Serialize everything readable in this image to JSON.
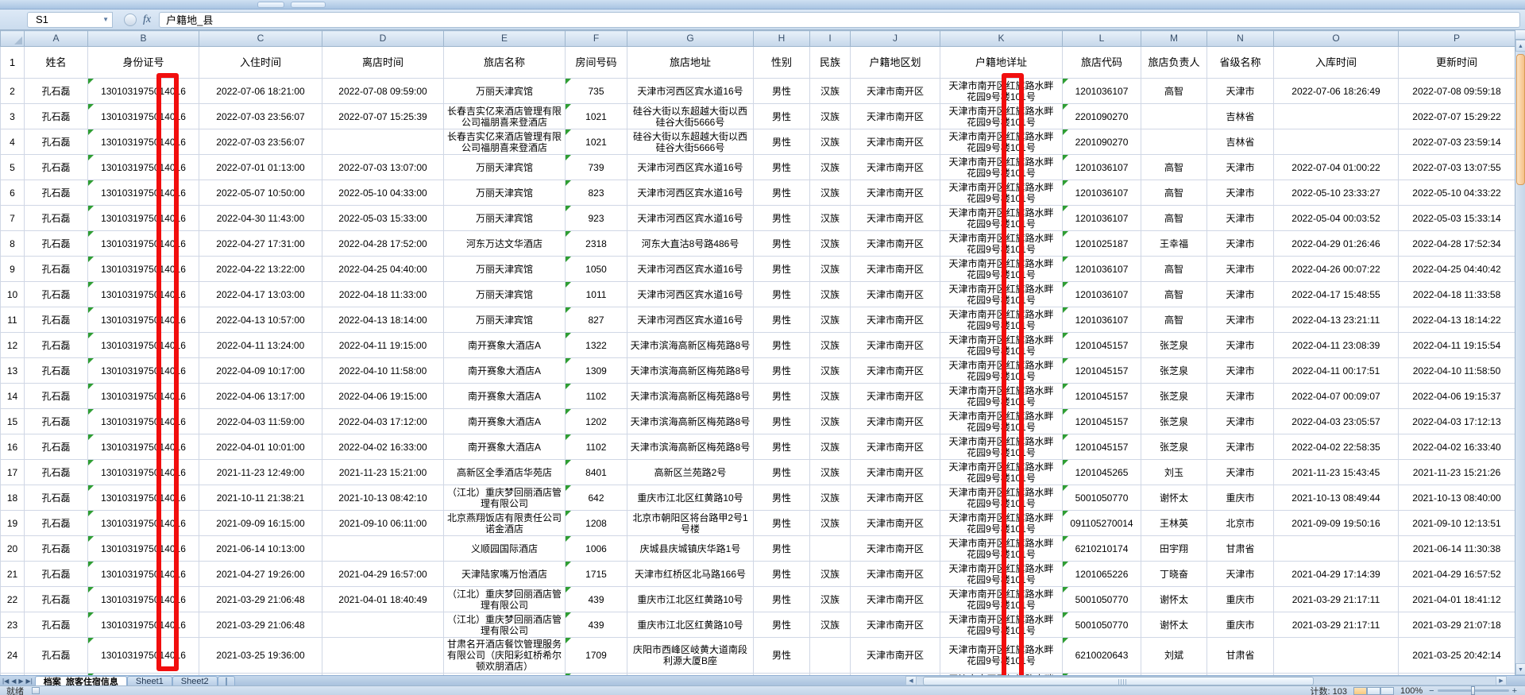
{
  "formula_bar": {
    "name_box": "S1",
    "fx_label": "fx",
    "formula_value": "户籍地_县"
  },
  "columns": {
    "letters": [
      "A",
      "B",
      "C",
      "D",
      "E",
      "F",
      "G",
      "H",
      "I",
      "J",
      "K",
      "L",
      "M",
      "N",
      "O",
      "P"
    ],
    "labels": [
      "姓名",
      "身份证号",
      "入住时间",
      "离店时间",
      "旅店名称",
      "房间号码",
      "旅店地址",
      "性别",
      "民族",
      "户籍地区划",
      "户籍地详址",
      "旅店代码",
      "旅店负责人",
      "省级名称",
      "入库时间",
      "更新时间"
    ]
  },
  "colors": {
    "highlight_box": "#f10e0e",
    "error_triangle": "#2f9e33",
    "row_gutter_bg": "#f8c895",
    "header_bg": "#d3e1f0"
  },
  "table": {
    "common": {
      "name": "孔石磊",
      "id": {
        "prefix": "13010319750",
        "boxed": "14",
        "suffix": "016"
      },
      "gender": "男性",
      "region": "天津市南开区",
      "reg_addr_line1": "天津市南开区红旗路水畔",
      "reg_addr_line2": "花园9号楼101号"
    },
    "rows": [
      {
        "ci": "2022-07-06 18:21:00",
        "co": "2022-07-08 09:59:00",
        "ho": "万丽天津宾馆",
        "rm": "735",
        "ad": "天津市河西区宾水道16号",
        "et": "汉族",
        "cd": "1201036107",
        "mg": "高智",
        "pv": "天津市",
        "en": "2022-07-06 18:26:49",
        "up": "2022-07-08 09:59:18"
      },
      {
        "ci": "2022-07-03 23:56:07",
        "co": "2022-07-07 15:25:39",
        "ho": "长春吉实亿来酒店管理有限公司福朋喜来登酒店",
        "rm": "1021",
        "ad": "硅谷大街以东超越大街以西硅谷大街5666号",
        "et": "汉族",
        "cd": "2201090270",
        "mg": "",
        "pv": "吉林省",
        "en": "",
        "up": "2022-07-07 15:29:22"
      },
      {
        "ci": "2022-07-03 23:56:07",
        "co": "",
        "ho": "长春吉实亿来酒店管理有限公司福朋喜来登酒店",
        "rm": "1021",
        "ad": "硅谷大街以东超越大街以西硅谷大街5666号",
        "et": "汉族",
        "cd": "2201090270",
        "mg": "",
        "pv": "吉林省",
        "en": "",
        "up": "2022-07-03 23:59:14"
      },
      {
        "ci": "2022-07-01 01:13:00",
        "co": "2022-07-03 13:07:00",
        "ho": "万丽天津宾馆",
        "rm": "739",
        "ad": "天津市河西区宾水道16号",
        "et": "汉族",
        "cd": "1201036107",
        "mg": "高智",
        "pv": "天津市",
        "en": "2022-07-04 01:00:22",
        "up": "2022-07-03 13:07:55"
      },
      {
        "ci": "2022-05-07 10:50:00",
        "co": "2022-05-10 04:33:00",
        "ho": "万丽天津宾馆",
        "rm": "823",
        "ad": "天津市河西区宾水道16号",
        "et": "汉族",
        "cd": "1201036107",
        "mg": "高智",
        "pv": "天津市",
        "en": "2022-05-10 23:33:27",
        "up": "2022-05-10 04:33:22"
      },
      {
        "ci": "2022-04-30 11:43:00",
        "co": "2022-05-03 15:33:00",
        "ho": "万丽天津宾馆",
        "rm": "923",
        "ad": "天津市河西区宾水道16号",
        "et": "汉族",
        "cd": "1201036107",
        "mg": "高智",
        "pv": "天津市",
        "en": "2022-05-04 00:03:52",
        "up": "2022-05-03 15:33:14"
      },
      {
        "ci": "2022-04-27 17:31:00",
        "co": "2022-04-28 17:52:00",
        "ho": "河东万达文华酒店",
        "rm": "2318",
        "ad": "河东大直沽8号路486号",
        "et": "汉族",
        "cd": "1201025187",
        "mg": "王幸福",
        "pv": "天津市",
        "en": "2022-04-29 01:26:46",
        "up": "2022-04-28 17:52:34"
      },
      {
        "ci": "2022-04-22 13:22:00",
        "co": "2022-04-25 04:40:00",
        "ho": "万丽天津宾馆",
        "rm": "1050",
        "ad": "天津市河西区宾水道16号",
        "et": "汉族",
        "cd": "1201036107",
        "mg": "高智",
        "pv": "天津市",
        "en": "2022-04-26 00:07:22",
        "up": "2022-04-25 04:40:42"
      },
      {
        "ci": "2022-04-17 13:03:00",
        "co": "2022-04-18 11:33:00",
        "ho": "万丽天津宾馆",
        "rm": "1011",
        "ad": "天津市河西区宾水道16号",
        "et": "汉族",
        "cd": "1201036107",
        "mg": "高智",
        "pv": "天津市",
        "en": "2022-04-17 15:48:55",
        "up": "2022-04-18 11:33:58"
      },
      {
        "ci": "2022-04-13 10:57:00",
        "co": "2022-04-13 18:14:00",
        "ho": "万丽天津宾馆",
        "rm": "827",
        "ad": "天津市河西区宾水道16号",
        "et": "汉族",
        "cd": "1201036107",
        "mg": "高智",
        "pv": "天津市",
        "en": "2022-04-13 23:21:11",
        "up": "2022-04-13 18:14:22"
      },
      {
        "ci": "2022-04-11 13:24:00",
        "co": "2022-04-11 19:15:00",
        "ho": "南开赛象大酒店A",
        "rm": "1322",
        "ad": "天津市滨海高新区梅苑路8号",
        "et": "汉族",
        "cd": "1201045157",
        "mg": "张芝泉",
        "pv": "天津市",
        "en": "2022-04-11 23:08:39",
        "up": "2022-04-11 19:15:54"
      },
      {
        "ci": "2022-04-09 10:17:00",
        "co": "2022-04-10 11:58:00",
        "ho": "南开赛象大酒店A",
        "rm": "1309",
        "ad": "天津市滨海高新区梅苑路8号",
        "et": "汉族",
        "cd": "1201045157",
        "mg": "张芝泉",
        "pv": "天津市",
        "en": "2022-04-11 00:17:51",
        "up": "2022-04-10 11:58:50"
      },
      {
        "ci": "2022-04-06 13:17:00",
        "co": "2022-04-06 19:15:00",
        "ho": "南开赛象大酒店A",
        "rm": "1102",
        "ad": "天津市滨海高新区梅苑路8号",
        "et": "汉族",
        "cd": "1201045157",
        "mg": "张芝泉",
        "pv": "天津市",
        "en": "2022-04-07 00:09:07",
        "up": "2022-04-06 19:15:37"
      },
      {
        "ci": "2022-04-03 11:59:00",
        "co": "2022-04-03 17:12:00",
        "ho": "南开赛象大酒店A",
        "rm": "1202",
        "ad": "天津市滨海高新区梅苑路8号",
        "et": "汉族",
        "cd": "1201045157",
        "mg": "张芝泉",
        "pv": "天津市",
        "en": "2022-04-03 23:05:57",
        "up": "2022-04-03 17:12:13"
      },
      {
        "ci": "2022-04-01 10:01:00",
        "co": "2022-04-02 16:33:00",
        "ho": "南开赛象大酒店A",
        "rm": "1102",
        "ad": "天津市滨海高新区梅苑路8号",
        "et": "汉族",
        "cd": "1201045157",
        "mg": "张芝泉",
        "pv": "天津市",
        "en": "2022-04-02 22:58:35",
        "up": "2022-04-02 16:33:40"
      },
      {
        "ci": "2021-11-23 12:49:00",
        "co": "2021-11-23 15:21:00",
        "ho": "高新区全季酒店华苑店",
        "rm": "8401",
        "ad": "高新区兰苑路2号",
        "et": "汉族",
        "cd": "1201045265",
        "mg": "刘玉",
        "pv": "天津市",
        "en": "2021-11-23 15:43:45",
        "up": "2021-11-23 15:21:26"
      },
      {
        "ci": "2021-10-11 21:38:21",
        "co": "2021-10-13 08:42:10",
        "ho": "（江北）重庆梦回丽酒店管理有限公司",
        "rm": "642",
        "ad": "重庆市江北区红黄路10号",
        "et": "汉族",
        "cd": "5001050770",
        "mg": "谢怀太",
        "pv": "重庆市",
        "en": "2021-10-13 08:49:44",
        "up": "2021-10-13 08:40:00"
      },
      {
        "ci": "2021-09-09 16:15:00",
        "co": "2021-09-10 06:11:00",
        "ho": "北京燕翔饭店有限责任公司诺金酒店",
        "rm": "1208",
        "ad": "北京市朝阳区将台路甲2号1号楼",
        "et": "汉族",
        "cd": "091105270014",
        "mg": "王林英",
        "pv": "北京市",
        "en": "2021-09-09 19:50:16",
        "up": "2021-09-10 12:13:51"
      },
      {
        "ci": "2021-06-14 10:13:00",
        "co": "",
        "ho": "义顺园国际酒店",
        "rm": "1006",
        "ad": "庆城县庆城镇庆华路1号",
        "et": "",
        "cd": "6210210174",
        "mg": "田宇翔",
        "pv": "甘肃省",
        "en": "",
        "up": "2021-06-14 11:30:38"
      },
      {
        "ci": "2021-04-27 19:26:00",
        "co": "2021-04-29 16:57:00",
        "ho": "天津陆家嘴万怡酒店",
        "rm": "1715",
        "ad": "天津市红桥区北马路166号",
        "et": "汉族",
        "cd": "1201065226",
        "mg": "丁晓奋",
        "pv": "天津市",
        "en": "2021-04-29 17:14:39",
        "up": "2021-04-29 16:57:52"
      },
      {
        "ci": "2021-03-29 21:06:48",
        "co": "2021-04-01 18:40:49",
        "ho": "（江北）重庆梦回丽酒店管理有限公司",
        "rm": "439",
        "ad": "重庆市江北区红黄路10号",
        "et": "汉族",
        "cd": "5001050770",
        "mg": "谢怀太",
        "pv": "重庆市",
        "en": "2021-03-29 21:17:11",
        "up": "2021-04-01 18:41:12"
      },
      {
        "ci": "2021-03-29 21:06:48",
        "co": "",
        "ho": "（江北）重庆梦回丽酒店管理有限公司",
        "rm": "439",
        "ad": "重庆市江北区红黄路10号",
        "et": "汉族",
        "cd": "5001050770",
        "mg": "谢怀太",
        "pv": "重庆市",
        "en": "2021-03-29 21:17:11",
        "up": "2021-03-29 21:07:18"
      },
      {
        "ci": "2021-03-25 19:36:00",
        "co": "",
        "ho": "甘肃名开酒店餐饮管理服务有限公司（庆阳彩虹桥希尔顿欢朋酒店）",
        "rm": "1709",
        "ad": "庆阳市西峰区岐黄大道南段利源大厦B座",
        "et": "",
        "cd": "6210020643",
        "mg": "刘斌",
        "pv": "甘肃省",
        "en": "",
        "up": "2021-03-25 20:42:14"
      }
    ]
  },
  "sheet_tabs": {
    "tabs": [
      "档案_旅客住宿信息",
      "Sheet1",
      "Sheet2"
    ],
    "active_index": 0
  },
  "status_bar": {
    "ready": "就绪",
    "count": "计数: 103",
    "zoom": "100%"
  }
}
